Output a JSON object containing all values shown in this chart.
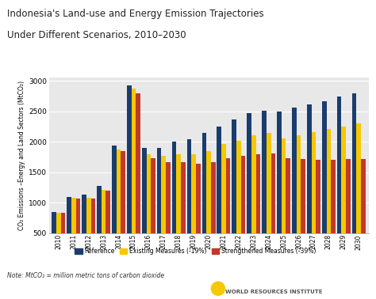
{
  "title_line1": "Indonesia's Land-use and Energy Emission Trajectories",
  "title_line2": "Under Different Scenarios, 2010–2030",
  "ylabel": "CO₂ Emissions –Energy and Land Sectors (MtCO₂)",
  "note": "Note: MtCO₂ = million metric tons of carbon dioxide",
  "years": [
    2010,
    2011,
    2012,
    2013,
    2014,
    2015,
    2016,
    2017,
    2018,
    2019,
    2020,
    2021,
    2022,
    2023,
    2024,
    2025,
    2026,
    2027,
    2028,
    2029,
    2030
  ],
  "reference": [
    850,
    1090,
    1130,
    1270,
    1940,
    2920,
    1900,
    1900,
    2000,
    2040,
    2140,
    2250,
    2360,
    2470,
    2510,
    2490,
    2555,
    2615,
    2670,
    2740,
    2800
  ],
  "existing": [
    840,
    1080,
    1080,
    1210,
    1870,
    2870,
    1800,
    1770,
    1800,
    1800,
    1850,
    1960,
    2010,
    2110,
    2140,
    2060,
    2110,
    2160,
    2205,
    2245,
    2300
  ],
  "strengthened": [
    835,
    1070,
    1075,
    1200,
    1850,
    2790,
    1730,
    1660,
    1660,
    1640,
    1670,
    1730,
    1770,
    1800,
    1810,
    1730,
    1720,
    1710,
    1710,
    1720,
    1720
  ],
  "ylim": [
    500,
    3050
  ],
  "yticks": [
    500,
    1000,
    1500,
    2000,
    2500,
    3000
  ],
  "color_ref": "#1a3d6e",
  "color_existing": "#f5c800",
  "color_strengthened": "#c0392b",
  "bg_color": "#e8e8e8",
  "legend_labels": [
    "Reference",
    "Existing Measures (-19%)",
    "Strengthened Measures (-39%)"
  ],
  "bar_width": 0.3,
  "bar_gap": 0.02
}
